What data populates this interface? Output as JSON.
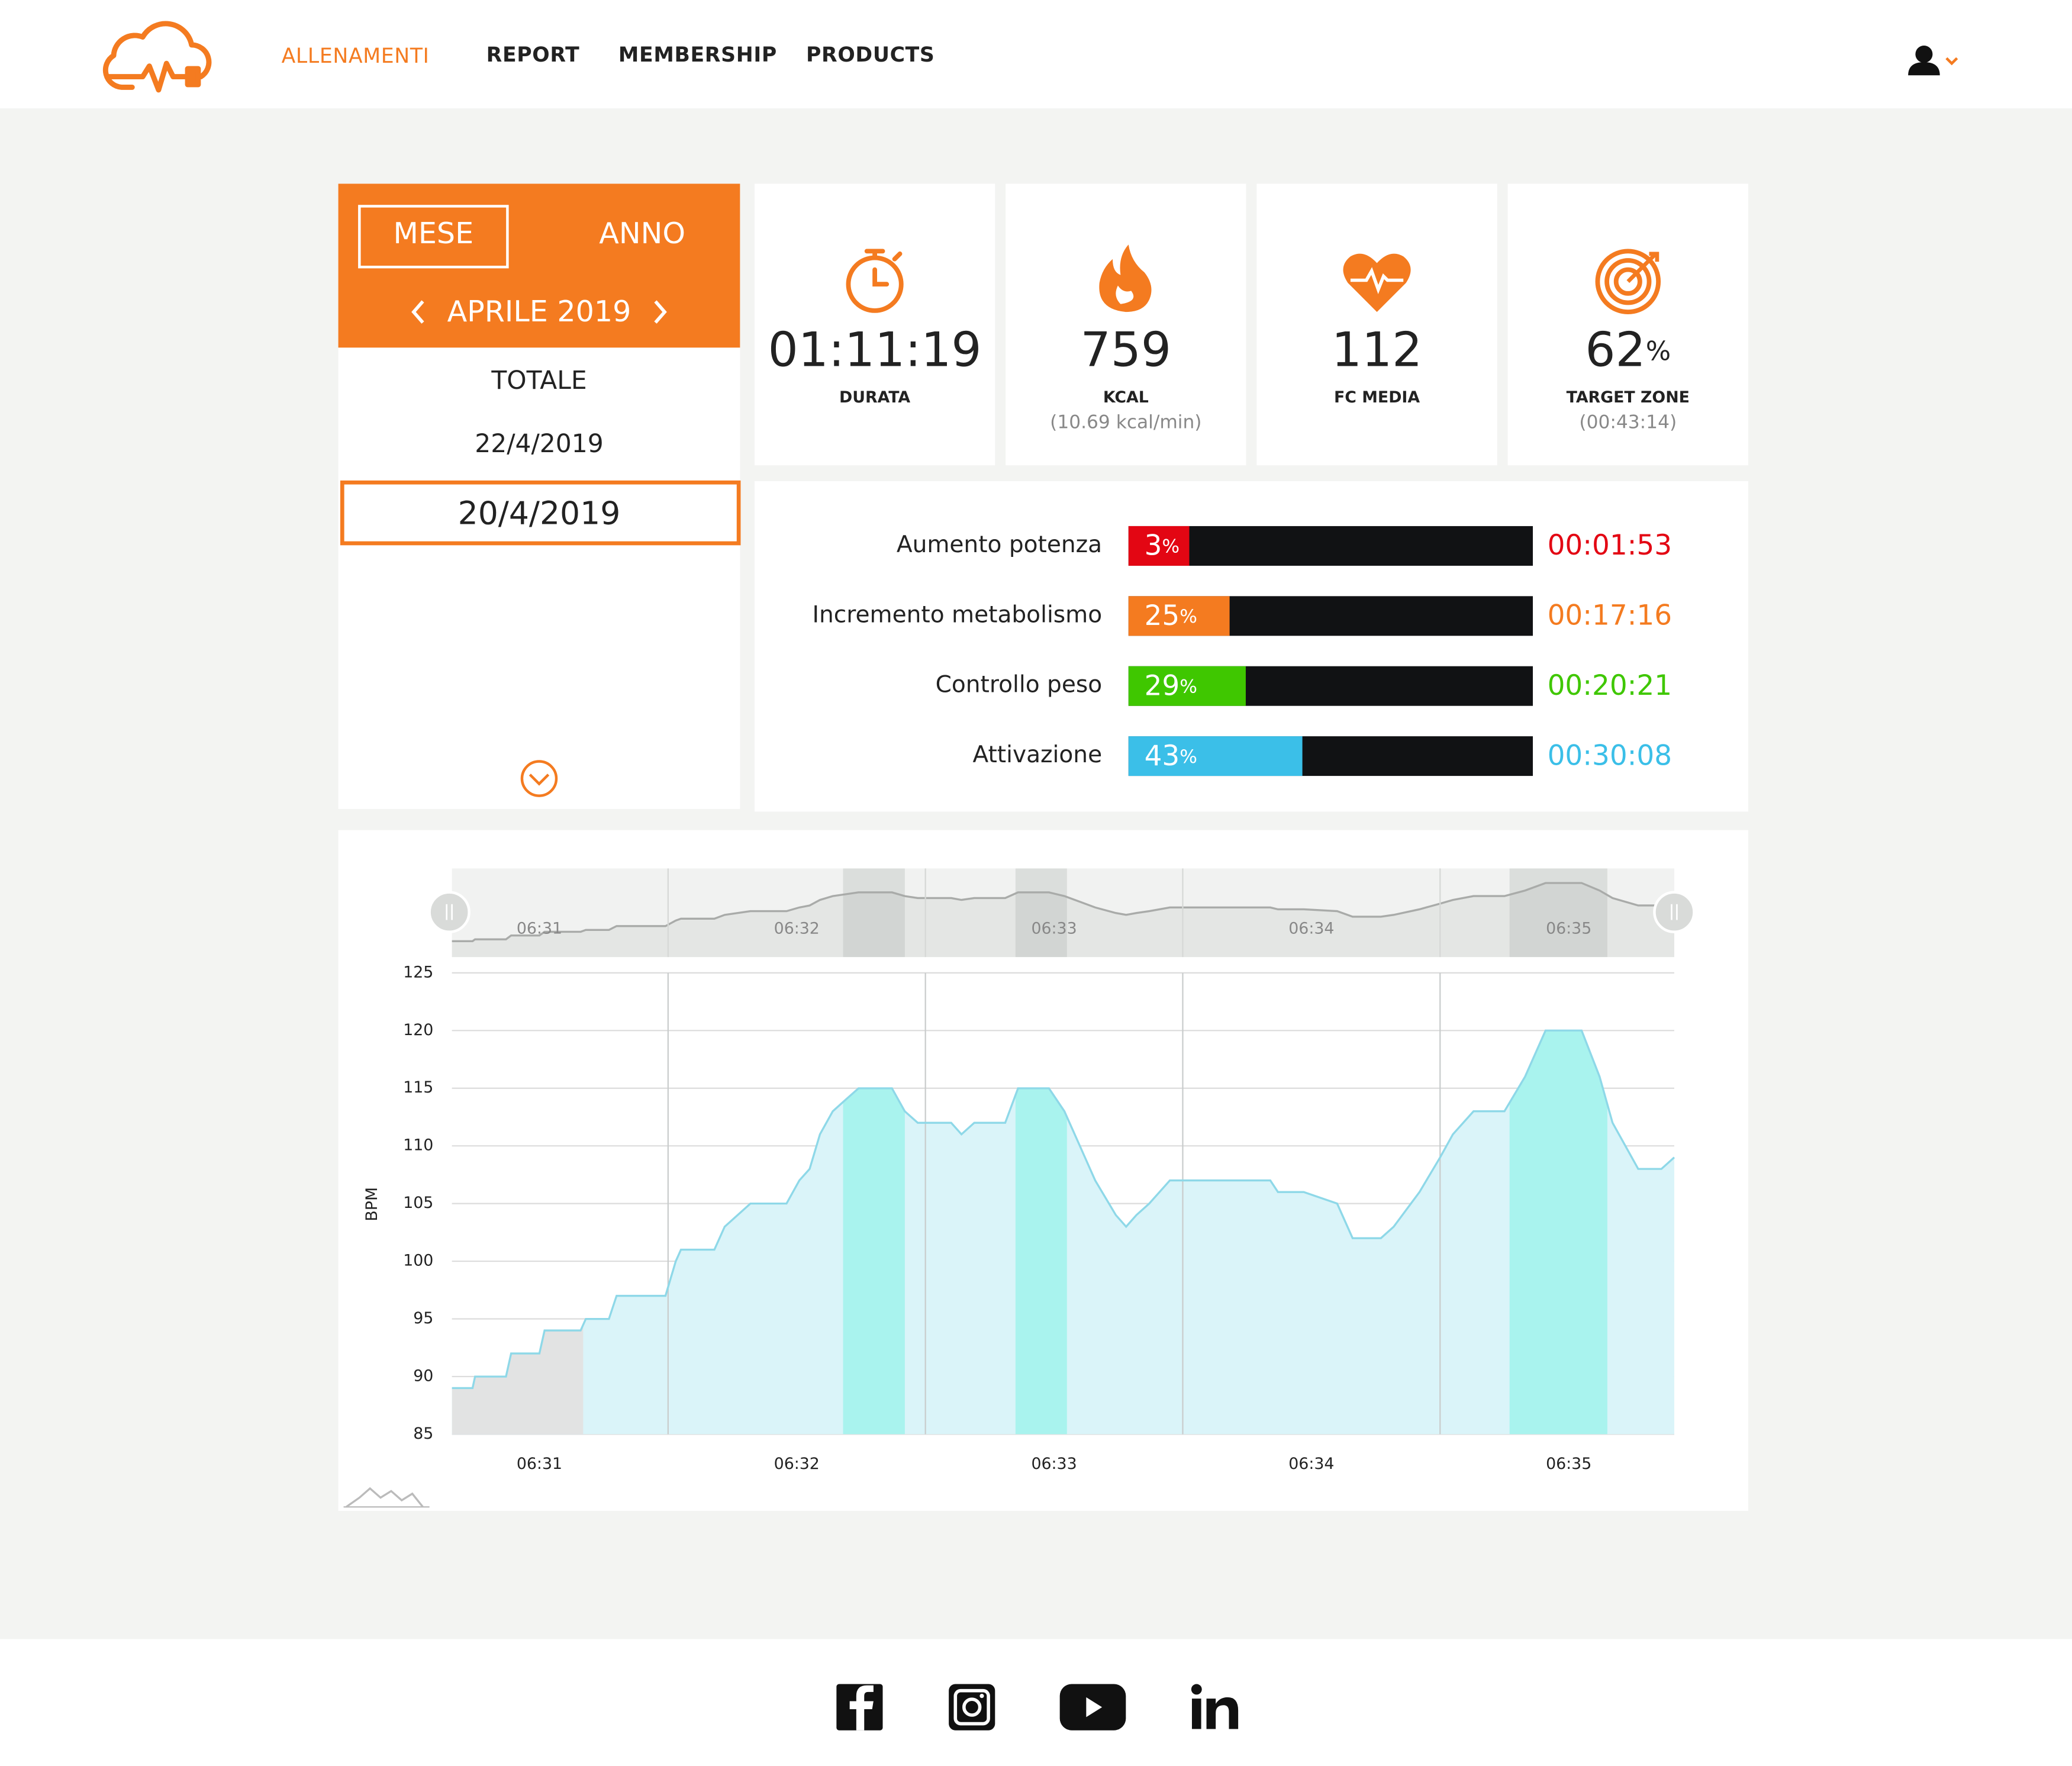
{
  "header": {
    "nav": [
      "ALLENAMENTI",
      "REPORT",
      "MEMBERSHIP",
      "PRODUCTS"
    ]
  },
  "sidebar": {
    "tabs": [
      "MESE",
      "ANNO"
    ],
    "period": "APRILE 2019",
    "items": [
      "TOTALE",
      "22/4/2019",
      "20/4/2019"
    ]
  },
  "stats": [
    {
      "value": "01:11:19",
      "label": "DURATA"
    },
    {
      "value": "759",
      "label": "KCAL",
      "sub": "(10.69 kcal/min)"
    },
    {
      "value": "112",
      "label": "FC MEDIA"
    },
    {
      "value": "62",
      "unit": "%",
      "label": "TARGET ZONE",
      "sub": "(00:43:14)"
    }
  ],
  "zones": [
    {
      "name": "Aumento potenza",
      "percent": 3,
      "unit": "%",
      "time": "00:01:53",
      "color": "#e30613"
    },
    {
      "name": "Incremento metabolismo",
      "percent": 25,
      "unit": "%",
      "time": "00:17:16",
      "color": "#f47b20"
    },
    {
      "name": "Controllo peso",
      "percent": 29,
      "unit": "%",
      "time": "00:20:21",
      "color": "#3fc700"
    },
    {
      "name": "Attivazione",
      "percent": 43,
      "unit": "%",
      "time": "00:30:08",
      "color": "#3bbfe8"
    }
  ],
  "chart_data": {
    "type": "area",
    "y_label": "BPM",
    "color": "#8ed8e8",
    "grid": true,
    "x": [
      390.66,
      390.74,
      390.75,
      390.87,
      390.89,
      391.0,
      391.02,
      391.16,
      391.18,
      391.27,
      391.3,
      391.49,
      391.53,
      391.55,
      391.68,
      391.72,
      391.82,
      391.96,
      392.01,
      392.05,
      392.09,
      392.14,
      392.19,
      392.24,
      392.37,
      392.42,
      392.47,
      392.6,
      392.64,
      392.69,
      392.81,
      392.86,
      392.98,
      393.04,
      393.1,
      393.16,
      393.24,
      393.28,
      393.32,
      393.37,
      393.45,
      393.84,
      393.87,
      393.97,
      394.1,
      394.16,
      394.27,
      394.32,
      394.42,
      394.5,
      394.55,
      394.63,
      394.75,
      394.83,
      394.91,
      395.05,
      395.12,
      395.17,
      395.27,
      395.36,
      395.41
    ],
    "values": [
      89,
      89,
      90,
      90,
      92,
      92,
      94,
      94,
      95,
      95,
      97,
      97,
      100,
      101,
      101,
      103,
      105,
      105,
      107,
      108,
      111,
      113,
      114,
      115,
      115,
      113,
      112,
      112,
      111,
      112,
      112,
      115,
      115,
      113,
      110,
      107,
      104,
      103,
      104,
      105,
      107,
      107,
      106,
      106,
      105,
      102,
      102,
      103,
      106,
      109,
      111,
      113,
      113,
      116,
      120,
      120,
      116,
      112,
      108,
      108,
      109
    ],
    "xlim": [
      390.66,
      395.41
    ],
    "ylim": [
      85,
      125
    ],
    "xticks": [
      {
        "value": 391,
        "label": "06:31"
      },
      {
        "value": 392,
        "label": "06:32"
      },
      {
        "value": 393,
        "label": "06:33"
      },
      {
        "value": 394,
        "label": "06:34"
      },
      {
        "value": 395,
        "label": "06:35"
      }
    ],
    "xgrid": [
      391.5,
      392.5,
      393.5,
      394.5
    ],
    "yticks": [
      85,
      90,
      95,
      100,
      105,
      110,
      115,
      120,
      125
    ],
    "warmup_range": [
      390.66,
      391.17
    ],
    "target_ranges": [
      [
        392.18,
        392.42
      ],
      [
        392.85,
        393.05
      ],
      [
        394.77,
        395.15
      ]
    ]
  }
}
